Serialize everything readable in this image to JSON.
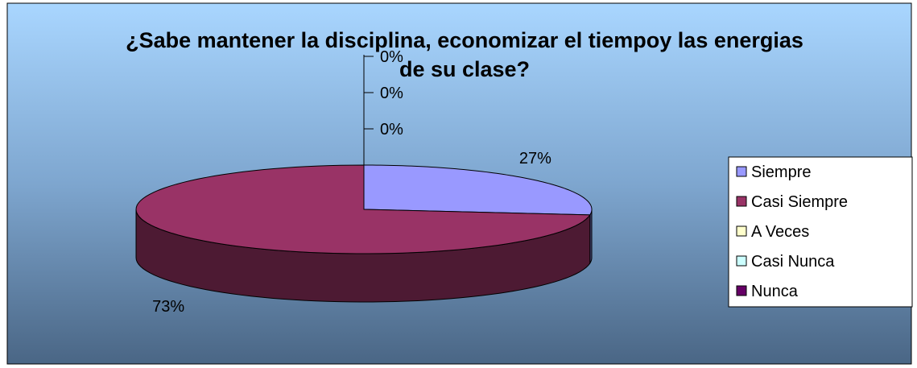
{
  "chart_data": {
    "type": "pie",
    "title": "¿Sabe mantener la disciplina, economizar el tiempoy las energias de su clase?",
    "categories": [
      "Siempre",
      "Casi Siempre",
      "A Veces",
      "Casi Nunca",
      "Nunca"
    ],
    "values": [
      27,
      73,
      0,
      0,
      0
    ],
    "value_labels": [
      "27%",
      "73%",
      "0%",
      "0%",
      "0%"
    ],
    "colors": [
      "#9999ff",
      "#993366",
      "#ffffcc",
      "#ccffff",
      "#660066"
    ],
    "legend": "right"
  }
}
